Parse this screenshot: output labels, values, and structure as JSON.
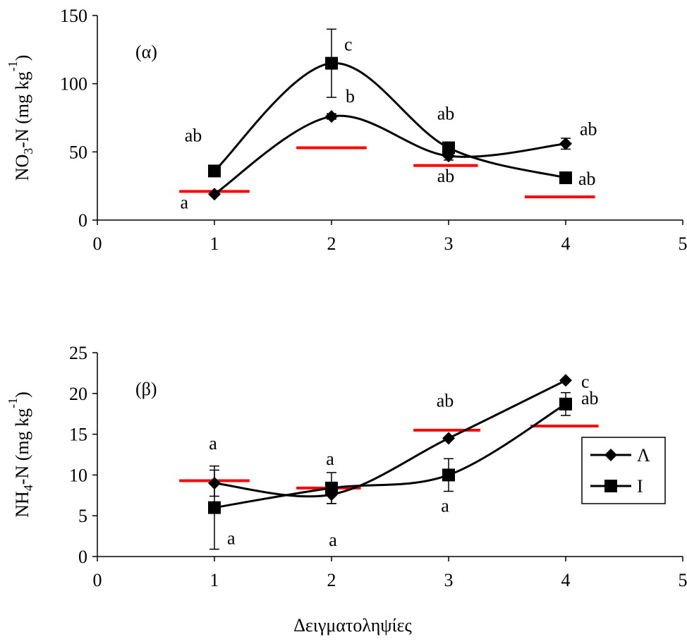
{
  "figure": {
    "xlabel": "Δειγματοληψίες"
  },
  "chart_data": [
    {
      "type": "line",
      "panel_label": "(α)",
      "ylabel_main": "NO",
      "ylabel_sub": "3",
      "ylabel_mid": "-N (mg kg",
      "ylabel_sup": "-1",
      "ylabel_end": ")",
      "xlim": [
        0,
        5
      ],
      "ylim": [
        0,
        150
      ],
      "x_ticks": [
        0,
        1,
        2,
        3,
        4,
        5
      ],
      "y_ticks": [
        0,
        50,
        100,
        150
      ],
      "grid": false,
      "series": [
        {
          "marker": "diamond",
          "x": [
            1,
            2,
            3,
            4
          ],
          "values": [
            19,
            76,
            47,
            56
          ],
          "err": [
            0,
            2,
            3,
            4
          ],
          "letters": [
            "a",
            "b",
            "ab",
            "ab"
          ]
        },
        {
          "marker": "square",
          "x": [
            1,
            2,
            3,
            4
          ],
          "values": [
            36,
            115,
            53,
            31
          ],
          "err": [
            0,
            25,
            2,
            0
          ],
          "letters": [
            "ab",
            "c",
            "ab",
            "ab"
          ]
        }
      ],
      "reference_lines": [
        {
          "x": [
            0.7,
            1.3
          ],
          "y": 21
        },
        {
          "x": [
            1.7,
            2.3
          ],
          "y": 53
        },
        {
          "x": [
            2.7,
            3.25
          ],
          "y": 40
        },
        {
          "x": [
            3.65,
            4.25
          ],
          "y": 17
        }
      ],
      "reference_color": "#ff0000"
    },
    {
      "type": "line",
      "panel_label": "(β)",
      "ylabel_main": "NH",
      "ylabel_sub": "4",
      "ylabel_mid": "-N (mg kg",
      "ylabel_sup": "-1",
      "ylabel_end": ")",
      "xlim": [
        0,
        5
      ],
      "ylim": [
        0,
        25
      ],
      "x_ticks": [
        0,
        1,
        2,
        3,
        4,
        5
      ],
      "y_ticks": [
        0,
        5,
        10,
        15,
        20,
        25
      ],
      "grid": false,
      "legend_position": "right",
      "series": [
        {
          "name": "Λ",
          "marker": "diamond",
          "x": [
            1,
            2,
            3,
            4
          ],
          "values": [
            9,
            7.6,
            14.5,
            21.6
          ],
          "err": [
            1.6,
            1.1,
            0,
            0
          ],
          "letters": [
            "a",
            "a",
            "ab",
            "c"
          ]
        },
        {
          "name": "Ι",
          "marker": "square",
          "x": [
            1,
            2,
            3,
            4
          ],
          "values": [
            6,
            8.4,
            10,
            18.7
          ],
          "err": [
            5.1,
            1.9,
            2,
            1.4
          ],
          "letters": [
            "a",
            "a",
            "a",
            "ab"
          ]
        }
      ],
      "reference_lines": [
        {
          "x": [
            0.7,
            1.3
          ],
          "y": 9.3
        },
        {
          "x": [
            1.7,
            2.25
          ],
          "y": 8.4
        },
        {
          "x": [
            2.7,
            3.27
          ],
          "y": 15.5
        },
        {
          "x": [
            3.7,
            4.28
          ],
          "y": 16
        }
      ],
      "reference_color": "#ff0000"
    }
  ]
}
